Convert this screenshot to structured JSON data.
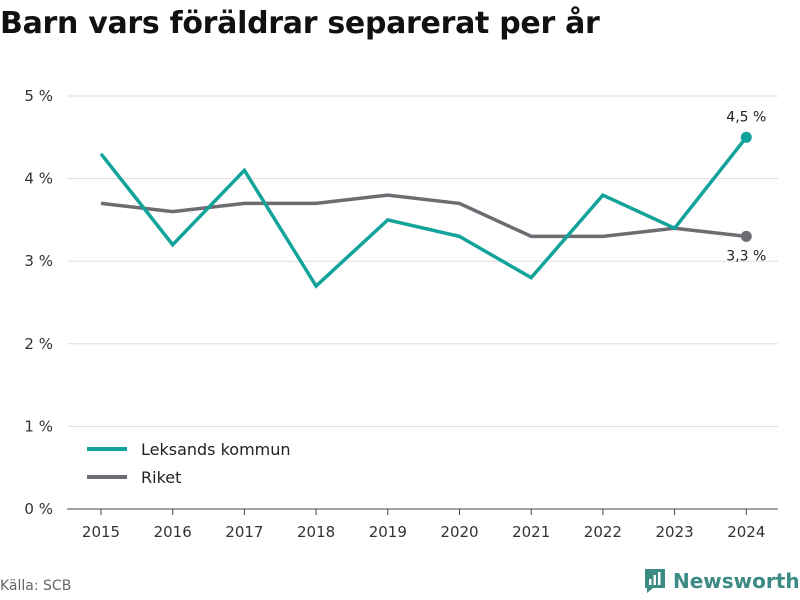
{
  "title": "Barn vars föräldrar separerat per år",
  "source": "Källa: SCB",
  "brand": "Newsworthy",
  "colors": {
    "teal": "#12a39a",
    "gray": "#6d6c72",
    "grid": "#dddddd",
    "brand": "#3b8a83"
  },
  "chart_data": {
    "type": "line",
    "categories": [
      "2015",
      "2016",
      "2017",
      "2018",
      "2019",
      "2020",
      "2021",
      "2022",
      "2023",
      "2024"
    ],
    "series": [
      {
        "name": "Leksands kommun",
        "color": "#12a39a",
        "values": [
          4.3,
          3.2,
          4.1,
          2.7,
          3.5,
          3.3,
          2.8,
          3.8,
          3.4,
          4.5
        ],
        "end_label": "4,5 %"
      },
      {
        "name": "Riket",
        "color": "#6d6c72",
        "values": [
          3.7,
          3.6,
          3.7,
          3.7,
          3.8,
          3.7,
          3.3,
          3.3,
          3.4,
          3.3
        ],
        "end_label": "3,3 %"
      }
    ],
    "y_ticks": [
      0,
      1,
      2,
      3,
      4,
      5
    ],
    "y_tick_labels": [
      "0 %",
      "1 %",
      "2 %",
      "3 %",
      "4 %",
      "5 %"
    ],
    "ylim": [
      0,
      5
    ],
    "grid": true,
    "legend_position": "bottom-left"
  }
}
